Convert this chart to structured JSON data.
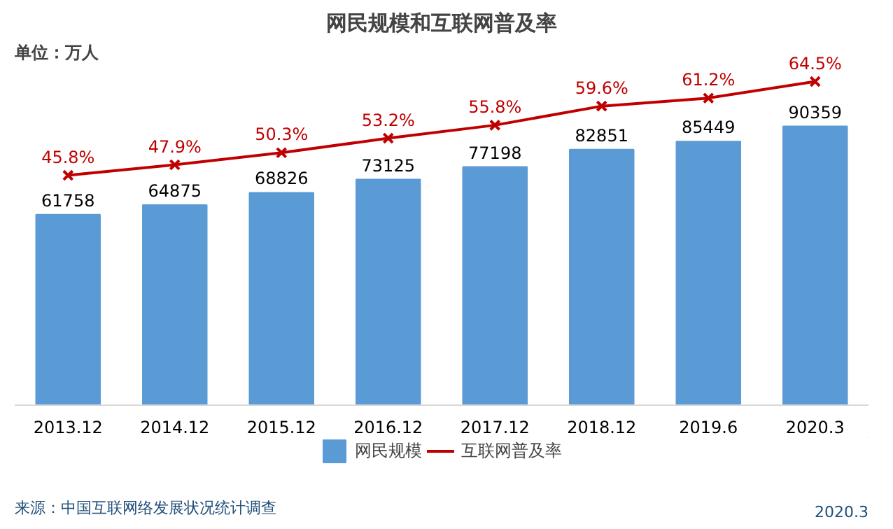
{
  "chart_data": {
    "type": "bar",
    "title": "网民规模和互联网普及率",
    "categories": [
      "2013.12",
      "2014.12",
      "2015.12",
      "2016.12",
      "2017.12",
      "2018.12",
      "2019.6",
      "2020.3"
    ],
    "series": [
      {
        "name": "网民规模",
        "color": "#5b9bd5",
        "values": [
          61758,
          64875,
          68826,
          73125,
          77198,
          82851,
          85449,
          90359
        ]
      },
      {
        "name": "互联网普及率",
        "type": "line",
        "axis": "y2",
        "color": "#c00000",
        "marker": "cross",
        "value_labels": [
          "45.8%",
          "47.9%",
          "50.3%",
          "53.2%",
          "55.8%",
          "59.6%",
          "61.2%",
          "64.5%"
        ],
        "values": [
          45.8,
          47.9,
          50.3,
          53.2,
          55.8,
          59.6,
          61.2,
          64.5
        ]
      }
    ],
    "tick_labels": "x",
    "data_labels": true,
    "grid": false,
    "legend": "bottom",
    "annotations": [
      "单位：万人",
      "来源：中国互联网络发展状况统计调查",
      "2020.3"
    ]
  }
}
